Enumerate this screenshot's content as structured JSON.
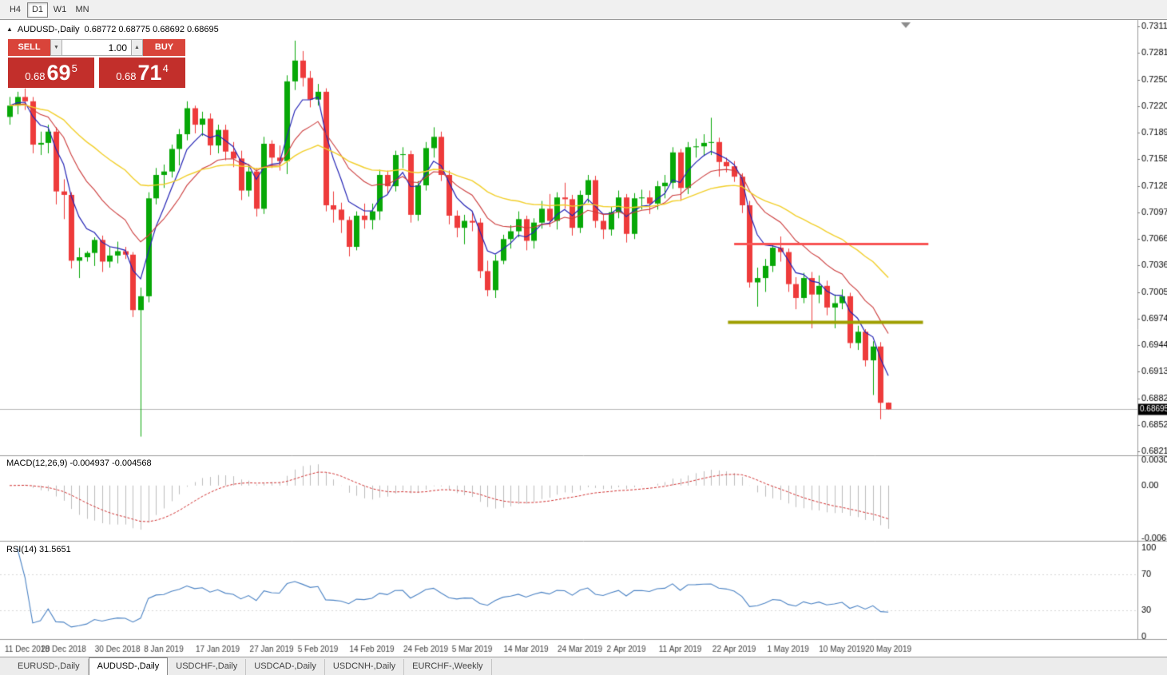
{
  "theme": {
    "button_red": "#d9443a",
    "box_red": "#c22f2b"
  },
  "icons": {
    "collapse_arrow": "▲",
    "spinner_down": "▼",
    "spinner_up": "▲"
  },
  "toolbar": {
    "timeframes": [
      {
        "label": "H4",
        "active": false
      },
      {
        "label": "D1",
        "active": true
      },
      {
        "label": "W1",
        "active": false
      },
      {
        "label": "MN",
        "active": false
      }
    ]
  },
  "chart": {
    "symbol_period": "AUDUSD-,Daily",
    "ohlc_text": "0.68772 0.68775 0.68692 0.68695"
  },
  "trade_panel": {
    "sell_label": "SELL",
    "buy_label": "BUY",
    "lot_size": "1.00",
    "sell_price": {
      "prefix": "0.68",
      "big": "69",
      "sup": "5"
    },
    "buy_price": {
      "prefix": "0.68",
      "big": "71",
      "sup": "4"
    }
  },
  "indicators": {
    "macd_header": "MACD(12,26,9) -0.004937 -0.004568",
    "rsi_header": "RSI(14) 31.5651"
  },
  "tabs": [
    {
      "label": "EURUSD-,Daily",
      "active": false
    },
    {
      "label": "AUDUSD-,Daily",
      "active": true
    },
    {
      "label": "USDCHF-,Daily",
      "active": false
    },
    {
      "label": "USDCAD-,Daily",
      "active": false
    },
    {
      "label": "USDCNH-,Daily",
      "active": false
    },
    {
      "label": "EURCHF-,Weekly",
      "active": false
    }
  ],
  "chart_data": {
    "type": "candlestick",
    "title": "AUDUSD-,Daily",
    "symbol": "AUDUSD",
    "timeframe": "Daily",
    "current_bid": "0.68695",
    "current_ask": "0.68714",
    "up_color": "#07a807",
    "down_color": "#ee3b3b",
    "price_axis": {
      "max": 0.73115,
      "min": 0.6821,
      "labels": [
        "0.73115",
        "0.72810",
        "0.72505",
        "0.72200",
        "0.71890",
        "0.71585",
        "0.71280",
        "0.70970",
        "0.70665",
        "0.70360",
        "0.70055",
        "0.69745",
        "0.69440",
        "0.69130",
        "0.68825",
        "0.68520",
        "0.68210"
      ]
    },
    "date_ticks": [
      {
        "bar": 0,
        "label": "11 Dec 2018"
      },
      {
        "bar": 7,
        "label": "20 Dec 2018"
      },
      {
        "bar": 14,
        "label": "30 Dec 2018"
      },
      {
        "bar": 20,
        "label": "8 Jan 2019"
      },
      {
        "bar": 27,
        "label": "17 Jan 2019"
      },
      {
        "bar": 34,
        "label": "27 Jan 2019"
      },
      {
        "bar": 40,
        "label": "5 Feb 2019"
      },
      {
        "bar": 47,
        "label": "14 Feb 2019"
      },
      {
        "bar": 54,
        "label": "24 Feb 2019"
      },
      {
        "bar": 60,
        "label": "5 Mar 2019"
      },
      {
        "bar": 67,
        "label": "14 Mar 2019"
      },
      {
        "bar": 74,
        "label": "24 Mar 2019"
      },
      {
        "bar": 80,
        "label": "2 Apr 2019"
      },
      {
        "bar": 87,
        "label": "11 Apr 2019"
      },
      {
        "bar": 94,
        "label": "22 Apr 2019"
      },
      {
        "bar": 101,
        "label": "1 May 2019"
      },
      {
        "bar": 108,
        "label": "10 May 2019"
      },
      {
        "bar": 114,
        "label": "20 May 2019"
      }
    ],
    "candles": [
      [
        0.7207,
        0.723,
        0.7198,
        0.722
      ],
      [
        0.722,
        0.7236,
        0.721,
        0.723
      ],
      [
        0.723,
        0.724,
        0.7215,
        0.7225
      ],
      [
        0.7225,
        0.723,
        0.7165,
        0.7175
      ],
      [
        0.7175,
        0.719,
        0.7163,
        0.7177
      ],
      [
        0.7177,
        0.7198,
        0.7165,
        0.719
      ],
      [
        0.719,
        0.7195,
        0.7106,
        0.7121
      ],
      [
        0.7121,
        0.7135,
        0.7089,
        0.7117
      ],
      [
        0.7117,
        0.712,
        0.7032,
        0.7041
      ],
      [
        0.7041,
        0.7056,
        0.7021,
        0.7045
      ],
      [
        0.7045,
        0.7052,
        0.704,
        0.705
      ],
      [
        0.705,
        0.7068,
        0.7035,
        0.7065
      ],
      [
        0.7065,
        0.707,
        0.7028,
        0.704
      ],
      [
        0.704,
        0.7057,
        0.7033,
        0.7047
      ],
      [
        0.7047,
        0.7063,
        0.7038,
        0.7052
      ],
      [
        0.7052,
        0.7057,
        0.7043,
        0.7048
      ],
      [
        0.7048,
        0.7051,
        0.6976,
        0.6984
      ],
      [
        0.6984,
        0.701,
        0.6838,
        0.7
      ],
      [
        0.7,
        0.712,
        0.6993,
        0.7113
      ],
      [
        0.7113,
        0.7148,
        0.7106,
        0.714
      ],
      [
        0.714,
        0.7152,
        0.7125,
        0.7144
      ],
      [
        0.7144,
        0.7175,
        0.7137,
        0.717
      ],
      [
        0.717,
        0.7193,
        0.7151,
        0.7187
      ],
      [
        0.7187,
        0.7225,
        0.718,
        0.7217
      ],
      [
        0.7217,
        0.722,
        0.7188,
        0.7198
      ],
      [
        0.7198,
        0.7213,
        0.7185,
        0.7205
      ],
      [
        0.7205,
        0.7211,
        0.7163,
        0.7174
      ],
      [
        0.7174,
        0.7198,
        0.7165,
        0.7192
      ],
      [
        0.7192,
        0.7198,
        0.7157,
        0.7167
      ],
      [
        0.7167,
        0.7178,
        0.7149,
        0.7159
      ],
      [
        0.7159,
        0.7168,
        0.7111,
        0.7122
      ],
      [
        0.7122,
        0.7152,
        0.7115,
        0.7144
      ],
      [
        0.7144,
        0.7148,
        0.7092,
        0.7101
      ],
      [
        0.7101,
        0.7184,
        0.7095,
        0.7176
      ],
      [
        0.7176,
        0.718,
        0.7148,
        0.716
      ],
      [
        0.716,
        0.7174,
        0.7145,
        0.7156
      ],
      [
        0.7156,
        0.7255,
        0.7141,
        0.7248
      ],
      [
        0.7248,
        0.7295,
        0.7238,
        0.7272
      ],
      [
        0.7272,
        0.7283,
        0.7242,
        0.7252
      ],
      [
        0.7252,
        0.726,
        0.7218,
        0.7227
      ],
      [
        0.7227,
        0.7245,
        0.722,
        0.7236
      ],
      [
        0.7236,
        0.724,
        0.7098,
        0.7105
      ],
      [
        0.7105,
        0.7121,
        0.7085,
        0.71
      ],
      [
        0.71,
        0.7108,
        0.7073,
        0.7088
      ],
      [
        0.7088,
        0.7092,
        0.7046,
        0.7057
      ],
      [
        0.7057,
        0.7098,
        0.7053,
        0.7093
      ],
      [
        0.7093,
        0.7107,
        0.7078,
        0.7088
      ],
      [
        0.7088,
        0.7107,
        0.7077,
        0.7098
      ],
      [
        0.7098,
        0.7146,
        0.7088,
        0.714
      ],
      [
        0.714,
        0.7145,
        0.7118,
        0.7127
      ],
      [
        0.7127,
        0.7168,
        0.7121,
        0.7163
      ],
      [
        0.7163,
        0.7172,
        0.7148,
        0.7164
      ],
      [
        0.7164,
        0.7168,
        0.7085,
        0.7094
      ],
      [
        0.7094,
        0.7133,
        0.7087,
        0.7128
      ],
      [
        0.7128,
        0.7178,
        0.7122,
        0.7171
      ],
      [
        0.7171,
        0.7195,
        0.716,
        0.7184
      ],
      [
        0.7184,
        0.719,
        0.7133,
        0.714
      ],
      [
        0.714,
        0.7145,
        0.7083,
        0.7093
      ],
      [
        0.7093,
        0.7099,
        0.7068,
        0.7079
      ],
      [
        0.7079,
        0.7094,
        0.706,
        0.7087
      ],
      [
        0.7087,
        0.7098,
        0.7075,
        0.7085
      ],
      [
        0.7085,
        0.709,
        0.7021,
        0.7029
      ],
      [
        0.7029,
        0.7041,
        0.7,
        0.7007
      ],
      [
        0.7007,
        0.7048,
        0.6998,
        0.7041
      ],
      [
        0.7041,
        0.7071,
        0.7037,
        0.7066
      ],
      [
        0.7066,
        0.7082,
        0.7055,
        0.7075
      ],
      [
        0.7075,
        0.7098,
        0.7068,
        0.7089
      ],
      [
        0.7089,
        0.7093,
        0.7053,
        0.7064
      ],
      [
        0.7064,
        0.709,
        0.7055,
        0.7085
      ],
      [
        0.7085,
        0.711,
        0.7078,
        0.7101
      ],
      [
        0.7101,
        0.7118,
        0.708,
        0.7087
      ],
      [
        0.7087,
        0.712,
        0.7077,
        0.7114
      ],
      [
        0.7114,
        0.7131,
        0.7101,
        0.7112
      ],
      [
        0.7112,
        0.7117,
        0.707,
        0.7079
      ],
      [
        0.7079,
        0.7122,
        0.7073,
        0.7117
      ],
      [
        0.7117,
        0.714,
        0.7108,
        0.7134
      ],
      [
        0.7134,
        0.7139,
        0.7079,
        0.7087
      ],
      [
        0.7087,
        0.7094,
        0.7066,
        0.7077
      ],
      [
        0.7077,
        0.7103,
        0.707,
        0.7097
      ],
      [
        0.7097,
        0.7122,
        0.709,
        0.7114
      ],
      [
        0.7114,
        0.7118,
        0.7062,
        0.7072
      ],
      [
        0.7072,
        0.7119,
        0.7066,
        0.7113
      ],
      [
        0.7113,
        0.7123,
        0.71,
        0.7114
      ],
      [
        0.7114,
        0.7122,
        0.7095,
        0.7107
      ],
      [
        0.7107,
        0.7133,
        0.71,
        0.7127
      ],
      [
        0.7127,
        0.714,
        0.7113,
        0.7131
      ],
      [
        0.7131,
        0.7172,
        0.7124,
        0.7166
      ],
      [
        0.7166,
        0.717,
        0.711,
        0.7125
      ],
      [
        0.7125,
        0.7178,
        0.7118,
        0.7172
      ],
      [
        0.7172,
        0.7182,
        0.716,
        0.7173
      ],
      [
        0.7173,
        0.7187,
        0.7162,
        0.7177
      ],
      [
        0.7177,
        0.7206,
        0.7163,
        0.7178
      ],
      [
        0.7178,
        0.7183,
        0.7138,
        0.7155
      ],
      [
        0.7155,
        0.716,
        0.7143,
        0.715
      ],
      [
        0.715,
        0.7156,
        0.7132,
        0.7138
      ],
      [
        0.7138,
        0.7142,
        0.7096,
        0.7105
      ],
      [
        0.7105,
        0.711,
        0.701,
        0.7016
      ],
      [
        0.7016,
        0.7033,
        0.6988,
        0.7021
      ],
      [
        0.7021,
        0.7043,
        0.7005,
        0.7035
      ],
      [
        0.7035,
        0.706,
        0.7028,
        0.7056
      ],
      [
        0.7056,
        0.7069,
        0.704,
        0.7051
      ],
      [
        0.7051,
        0.7055,
        0.7005,
        0.7014
      ],
      [
        0.7014,
        0.7022,
        0.6985,
        0.6998
      ],
      [
        0.6998,
        0.7027,
        0.6992,
        0.7021
      ],
      [
        0.7021,
        0.7028,
        0.6963,
        0.7002
      ],
      [
        0.7002,
        0.7024,
        0.6992,
        0.7012
      ],
      [
        0.7012,
        0.7018,
        0.6978,
        0.6987
      ],
      [
        0.6987,
        0.7002,
        0.6963,
        0.6992
      ],
      [
        0.6992,
        0.7008,
        0.6985,
        0.7
      ],
      [
        0.7,
        0.7004,
        0.694,
        0.6946
      ],
      [
        0.6946,
        0.6966,
        0.6938,
        0.6959
      ],
      [
        0.6959,
        0.6962,
        0.6919,
        0.6926
      ],
      [
        0.6926,
        0.6948,
        0.6886,
        0.6942
      ],
      [
        0.6942,
        0.6947,
        0.6858,
        0.6877
      ],
      [
        0.68772,
        0.68775,
        0.68692,
        0.68695
      ]
    ],
    "moving_averages": [
      {
        "type": "ema",
        "period": 5,
        "color": "#2323b5",
        "width": 1.2
      },
      {
        "type": "ema",
        "period": 13,
        "color": "#cc3b3b",
        "width": 1.1
      },
      {
        "type": "ema",
        "period": 34,
        "color": "#f2cf2a",
        "width": 1.4
      }
    ],
    "hlines": [
      {
        "name": "resistance-ray",
        "price": 0.7061,
        "from_bar": 94,
        "to_bar": 119.2,
        "color": "#f85454",
        "width": 3
      },
      {
        "name": "support-ray",
        "price": 0.69705,
        "from_bar": 93.2,
        "to_bar": 118.5,
        "color": "#9e9e00",
        "width": 4
      }
    ],
    "macd": {
      "fast": 12,
      "slow": 26,
      "signal": 9,
      "main_value": -0.004937,
      "signal_value": -0.004568,
      "histogram_color": "#bdbdbd",
      "signal_color": "#d12f2f",
      "axis": {
        "max": 0.003035,
        "min": -0.00631,
        "labels": [
          {
            "value": 0.003035,
            "label": "0.003035"
          },
          {
            "value": 0,
            "label": "0.00"
          },
          {
            "value": -0.00631,
            "label": "-0.00631"
          }
        ]
      }
    },
    "rsi": {
      "period": 14,
      "value": 31.5651,
      "color": "#4a82c4",
      "levels": [
        70,
        30
      ],
      "axis_labels": [
        {
          "value": 100,
          "label": "100"
        },
        {
          "value": 70,
          "label": "70"
        },
        {
          "value": 30,
          "label": "30"
        },
        {
          "value": 0,
          "label": "0"
        }
      ]
    }
  }
}
